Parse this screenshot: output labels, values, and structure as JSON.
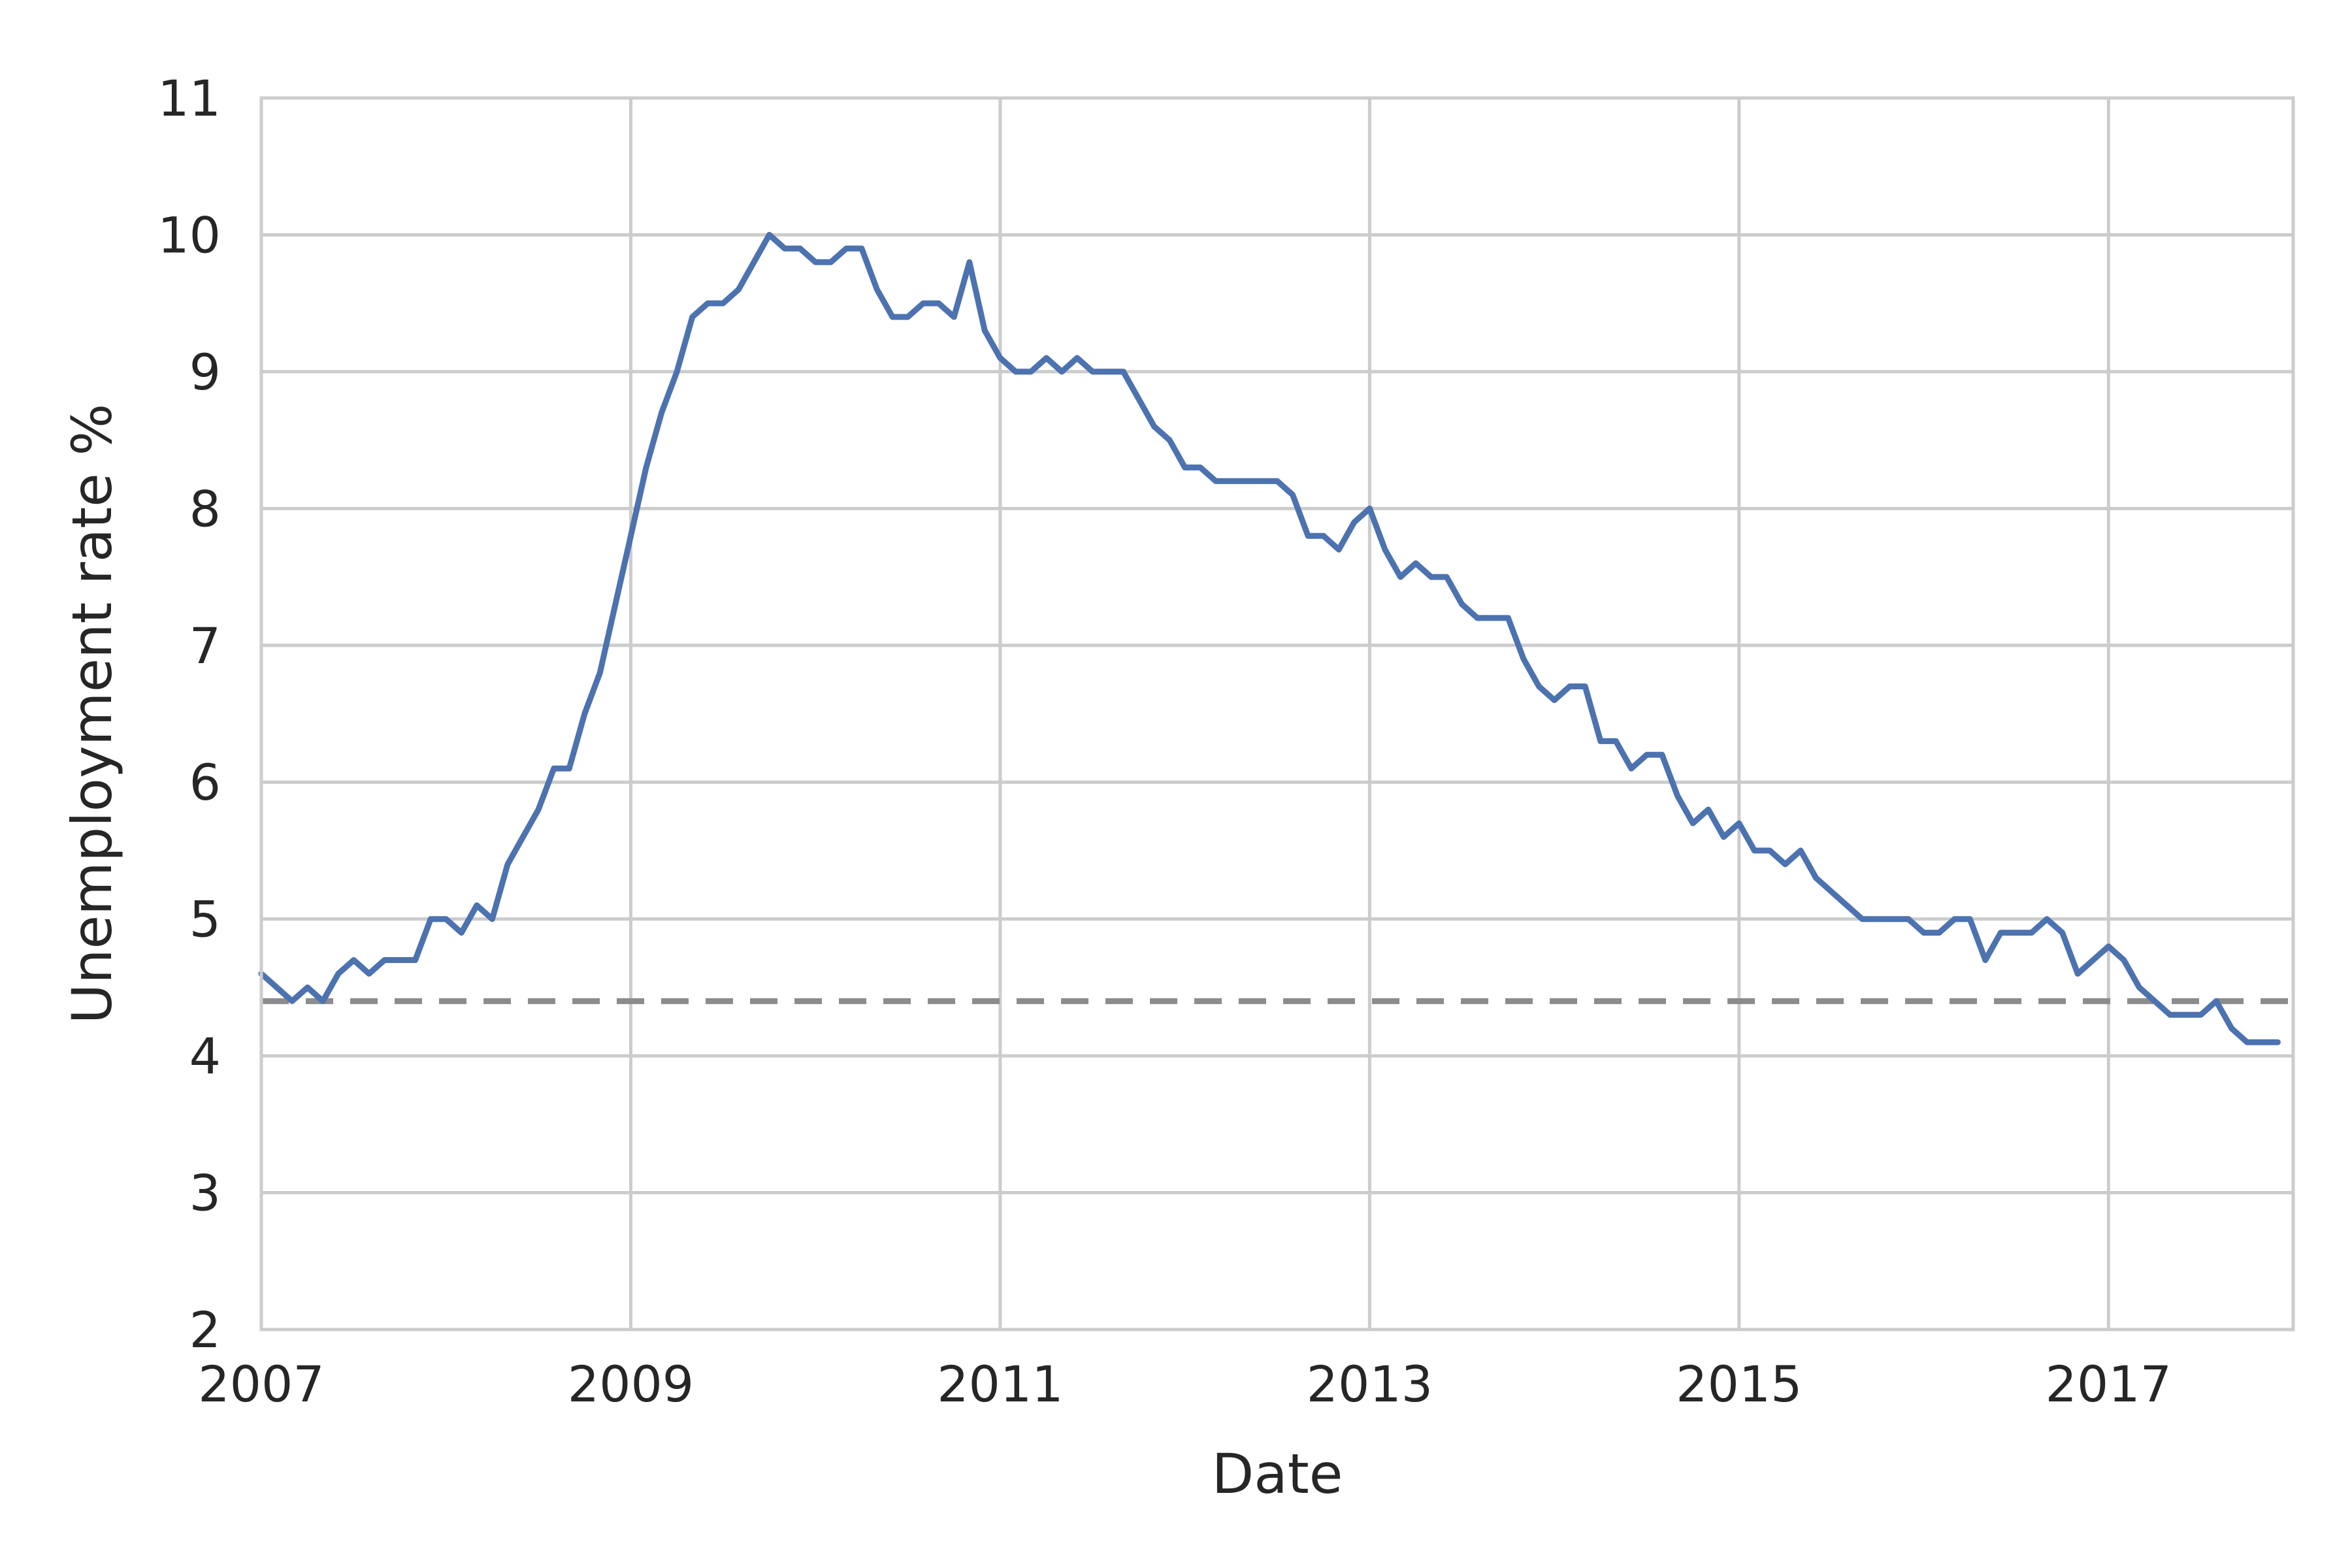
{
  "chart_data": {
    "type": "line",
    "title": "",
    "xlabel": "Date",
    "ylabel": "Unemployment rate %",
    "xlim": [
      "2007-01",
      "2018-01"
    ],
    "ylim": [
      2,
      11
    ],
    "x_ticks": [
      "2007",
      "2009",
      "2011",
      "2013",
      "2015",
      "2017"
    ],
    "y_ticks": [
      "2",
      "3",
      "4",
      "5",
      "6",
      "7",
      "8",
      "9",
      "10",
      "11"
    ],
    "grid": true,
    "line_color": "#4c72b0",
    "reference_line": {
      "value": 4.4,
      "style": "dashed",
      "color": "#8c8c8c"
    },
    "series": [
      {
        "x_start": "2007-01",
        "frequency": "monthly",
        "values": [
          4.6,
          4.5,
          4.4,
          4.5,
          4.4,
          4.6,
          4.7,
          4.6,
          4.7,
          4.7,
          4.7,
          5.0,
          5.0,
          4.9,
          5.1,
          5.0,
          5.4,
          5.6,
          5.8,
          6.1,
          6.1,
          6.5,
          6.8,
          7.3,
          7.8,
          8.3,
          8.7,
          9.0,
          9.4,
          9.5,
          9.5,
          9.6,
          9.8,
          10.0,
          9.9,
          9.9,
          9.8,
          9.8,
          9.9,
          9.9,
          9.6,
          9.4,
          9.4,
          9.5,
          9.5,
          9.4,
          9.8,
          9.3,
          9.1,
          9.0,
          9.0,
          9.1,
          9.0,
          9.1,
          9.0,
          9.0,
          9.0,
          8.8,
          8.6,
          8.5,
          8.3,
          8.3,
          8.2,
          8.2,
          8.2,
          8.2,
          8.2,
          8.1,
          7.8,
          7.8,
          7.7,
          7.9,
          8.0,
          7.7,
          7.5,
          7.6,
          7.5,
          7.5,
          7.3,
          7.2,
          7.2,
          7.2,
          6.9,
          6.7,
          6.6,
          6.7,
          6.7,
          6.3,
          6.3,
          6.1,
          6.2,
          6.2,
          5.9,
          5.7,
          5.8,
          5.6,
          5.7,
          5.5,
          5.5,
          5.4,
          5.5,
          5.3,
          5.2,
          5.1,
          5.0,
          5.0,
          5.0,
          5.0,
          4.9,
          4.9,
          5.0,
          5.0,
          4.7,
          4.9,
          4.9,
          4.9,
          5.0,
          4.9,
          4.6,
          4.7,
          4.8,
          4.7,
          4.5,
          4.4,
          4.3,
          4.3,
          4.3,
          4.4,
          4.2,
          4.1,
          4.1,
          4.1
        ]
      }
    ]
  }
}
